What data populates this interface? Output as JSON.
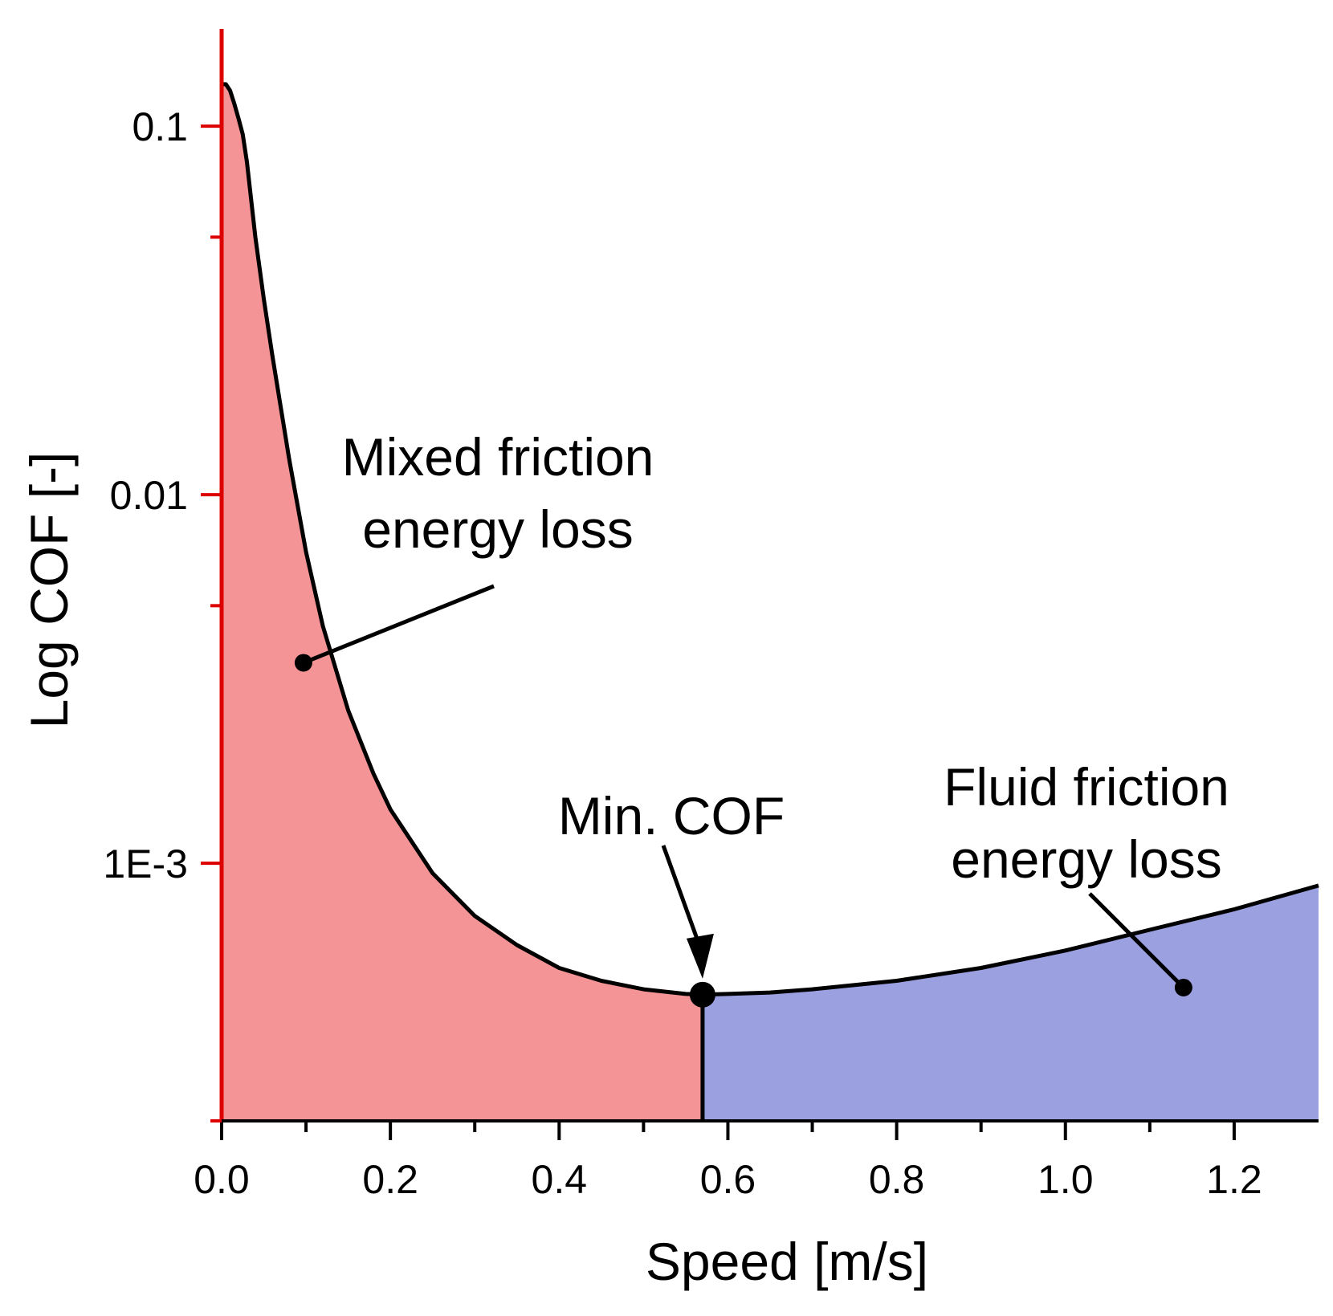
{
  "chart_data": {
    "type": "area",
    "title": "",
    "xlabel": "Speed [m/s]",
    "ylabel": "Log COF [-]",
    "xlim": [
      0,
      1.3
    ],
    "ylim": [
      0.0002,
      0.18
    ],
    "yscale": "log",
    "grid": false,
    "x_ticks": [
      0.0,
      0.2,
      0.4,
      0.6,
      0.8,
      1.0,
      1.2
    ],
    "x_tick_labels": [
      "0.0",
      "0.2",
      "0.4",
      "0.6",
      "0.8",
      "1.0",
      "1.2"
    ],
    "x_minor_ticks": [
      0.1,
      0.3,
      0.5,
      0.7,
      0.9,
      1.1
    ],
    "y_ticks": [
      0.1,
      0.01,
      0.001
    ],
    "y_tick_labels": [
      "0.1",
      "0.01",
      "1E-3"
    ],
    "y_minor_ticks": [
      0.05,
      0.005
    ],
    "series": [
      {
        "name": "COF",
        "x": [
          0,
          0.005,
          0.01,
          0.015,
          0.02,
          0.025,
          0.03,
          0.04,
          0.05,
          0.06,
          0.08,
          0.1,
          0.12,
          0.15,
          0.18,
          0.2,
          0.25,
          0.3,
          0.35,
          0.4,
          0.45,
          0.5,
          0.55,
          0.57,
          0.6,
          0.65,
          0.7,
          0.8,
          0.9,
          1.0,
          1.1,
          1.2,
          1.3
        ],
        "y": [
          0.13,
          0.13,
          0.125,
          0.115,
          0.105,
          0.095,
          0.08,
          0.05,
          0.034,
          0.024,
          0.0125,
          0.007,
          0.0044,
          0.0026,
          0.00175,
          0.0014,
          0.00094,
          0.00072,
          0.0006,
          0.00052,
          0.00048,
          0.000455,
          0.000442,
          0.00044,
          0.000442,
          0.000446,
          0.000455,
          0.00048,
          0.00052,
          0.00058,
          0.00066,
          0.00075,
          0.00087
        ]
      }
    ],
    "regions": [
      {
        "name": "Mixed friction energy loss",
        "x_range": [
          0,
          0.57
        ],
        "color": "#F59496"
      },
      {
        "name": "Fluid friction energy loss",
        "x_range": [
          0.57,
          1.3
        ],
        "color": "#9BA0E0"
      }
    ],
    "min_point": {
      "label": "Min. COF",
      "x": 0.57,
      "y": 0.00044
    },
    "annotations": [
      {
        "id": "mixed",
        "lines": [
          "Mixed friction",
          "energy loss"
        ],
        "pointer_x": 0.097,
        "pointer_y": 0.0035
      },
      {
        "id": "fluid",
        "lines": [
          "Fluid friction",
          "energy loss"
        ],
        "pointer_x": 1.14,
        "pointer_y": 0.00046
      },
      {
        "id": "min",
        "lines": [
          "Min. COF"
        ],
        "pointer_x": 0.57,
        "pointer_y": 0.00044
      }
    ],
    "axis_color_y": "#DD0000",
    "axis_color_x": "#000000",
    "line_color": "#000000"
  }
}
